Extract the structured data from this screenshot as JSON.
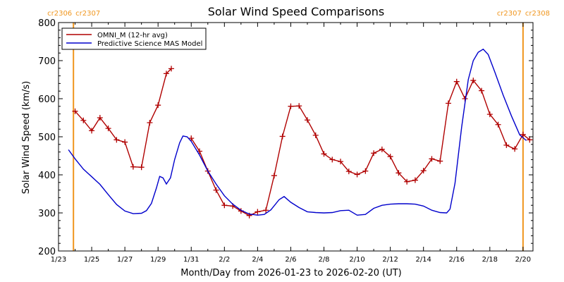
{
  "chart_data": {
    "type": "line",
    "title": "Solar Wind Speed Comparisons",
    "xlabel": "Month/Day from 2026-01-23 to 2026-02-20 (UT)",
    "ylabel": "Solar Wind Speed (km/s)",
    "ylim": [
      200,
      800
    ],
    "xlim": [
      0,
      28.6
    ],
    "xticks": [
      {
        "x": 0,
        "label": "1/23"
      },
      {
        "x": 2,
        "label": "1/25"
      },
      {
        "x": 4,
        "label": "1/27"
      },
      {
        "x": 6,
        "label": "1/29"
      },
      {
        "x": 8,
        "label": "1/31"
      },
      {
        "x": 10,
        "label": "2/2"
      },
      {
        "x": 12,
        "label": "2/4"
      },
      {
        "x": 14,
        "label": "2/6"
      },
      {
        "x": 16,
        "label": "2/8"
      },
      {
        "x": 18,
        "label": "2/10"
      },
      {
        "x": 20,
        "label": "2/12"
      },
      {
        "x": 22,
        "label": "2/14"
      },
      {
        "x": 24,
        "label": "2/16"
      },
      {
        "x": 26,
        "label": "2/18"
      },
      {
        "x": 28,
        "label": "2/20"
      }
    ],
    "yticks": [
      200,
      300,
      400,
      500,
      600,
      700,
      800
    ],
    "legend_position": "top-left",
    "carrington_markers": [
      {
        "x": 0.9,
        "label_left": "cr2306",
        "label_right": "cr2307",
        "color": "#f0961e"
      },
      {
        "x": 28.0,
        "label_left": "cr2307",
        "label_right": "cr2308",
        "color": "#f0961e"
      }
    ],
    "series": [
      {
        "name": "OMNI_M (12-hr avg)",
        "color": "#b00000",
        "markers": true,
        "segments": [
          [
            [
              1.0,
              567
            ],
            [
              1.5,
              543
            ],
            [
              2.0,
              516
            ],
            [
              2.5,
              550
            ],
            [
              3.0,
              522
            ],
            [
              3.5,
              492
            ],
            [
              4.0,
              486
            ],
            [
              4.5,
              421
            ],
            [
              5.0,
              420
            ],
            [
              5.5,
              537
            ],
            [
              6.0,
              583
            ],
            [
              6.5,
              666
            ],
            [
              6.8,
              679
            ]
          ],
          [
            [
              8.0,
              496
            ],
            [
              8.5,
              462
            ],
            [
              9.0,
              410
            ],
            [
              9.5,
              360
            ],
            [
              10.0,
              320
            ],
            [
              10.5,
              318
            ],
            [
              11.0,
              305
            ],
            [
              11.5,
              293
            ],
            [
              12.0,
              303
            ],
            [
              12.5,
              307
            ],
            [
              13.0,
              398
            ],
            [
              13.5,
              501
            ],
            [
              14.0,
              580
            ],
            [
              14.5,
              581
            ],
            [
              15.0,
              544
            ],
            [
              15.5,
              504
            ],
            [
              16.0,
              455
            ],
            [
              16.5,
              440
            ],
            [
              17.0,
              435
            ],
            [
              17.5,
              409
            ],
            [
              18.0,
              401
            ],
            [
              18.5,
              410
            ],
            [
              19.0,
              457
            ],
            [
              19.5,
              467
            ],
            [
              20.0,
              448
            ],
            [
              20.5,
              405
            ],
            [
              21.0,
              382
            ],
            [
              21.5,
              386
            ],
            [
              22.0,
              411
            ],
            [
              22.5,
              442
            ],
            [
              23.0,
              436
            ],
            [
              23.5,
              588
            ],
            [
              24.0,
              645
            ],
            [
              24.5,
              600
            ],
            [
              25.0,
              648
            ],
            [
              25.5,
              621
            ],
            [
              26.0,
              559
            ],
            [
              26.5,
              532
            ],
            [
              27.0,
              478
            ],
            [
              27.5,
              468
            ],
            [
              28.0,
              506
            ],
            [
              28.4,
              492
            ]
          ]
        ]
      },
      {
        "name": "Predictive Science MAS Model",
        "color": "#0000cc",
        "markers": false,
        "segments": [
          [
            [
              0.6,
              466
            ],
            [
              1.0,
              442
            ],
            [
              1.5,
              415
            ],
            [
              2.0,
              395
            ],
            [
              2.5,
              375
            ],
            [
              3.0,
              348
            ],
            [
              3.5,
              322
            ],
            [
              4.0,
              305
            ],
            [
              4.5,
              298
            ],
            [
              5.0,
              299
            ],
            [
              5.3,
              306
            ],
            [
              5.6,
              325
            ],
            [
              5.9,
              365
            ],
            [
              6.1,
              396
            ],
            [
              6.3,
              392
            ],
            [
              6.5,
              376
            ],
            [
              6.75,
              392
            ],
            [
              7.0,
              440
            ],
            [
              7.3,
              484
            ],
            [
              7.5,
              502
            ],
            [
              7.75,
              500
            ],
            [
              8.0,
              488
            ],
            [
              8.5,
              452
            ],
            [
              9.0,
              410
            ],
            [
              9.5,
              376
            ],
            [
              10.0,
              345
            ],
            [
              10.5,
              323
            ],
            [
              11.0,
              307
            ],
            [
              11.5,
              297
            ],
            [
              12.0,
              294
            ],
            [
              12.4,
              296
            ],
            [
              12.8,
              308
            ],
            [
              13.3,
              335
            ],
            [
              13.6,
              343
            ],
            [
              14.0,
              328
            ],
            [
              14.5,
              314
            ],
            [
              15.0,
              303
            ],
            [
              15.5,
              301
            ],
            [
              16.0,
              300
            ],
            [
              16.5,
              301
            ],
            [
              17.0,
              306
            ],
            [
              17.5,
              307
            ],
            [
              18.0,
              294
            ],
            [
              18.5,
              296
            ],
            [
              19.0,
              312
            ],
            [
              19.5,
              320
            ],
            [
              20.0,
              323
            ],
            [
              20.5,
              324
            ],
            [
              21.0,
              324
            ],
            [
              21.5,
              323
            ],
            [
              22.0,
              318
            ],
            [
              22.5,
              307
            ],
            [
              23.0,
              301
            ],
            [
              23.4,
              300
            ],
            [
              23.6,
              310
            ],
            [
              23.9,
              378
            ],
            [
              24.3,
              525
            ],
            [
              24.7,
              650
            ],
            [
              25.0,
              700
            ],
            [
              25.3,
              722
            ],
            [
              25.6,
              730
            ],
            [
              25.9,
              716
            ],
            [
              26.3,
              670
            ],
            [
              26.8,
              610
            ],
            [
              27.3,
              555
            ],
            [
              27.8,
              505
            ],
            [
              28.2,
              490
            ]
          ]
        ]
      }
    ]
  }
}
